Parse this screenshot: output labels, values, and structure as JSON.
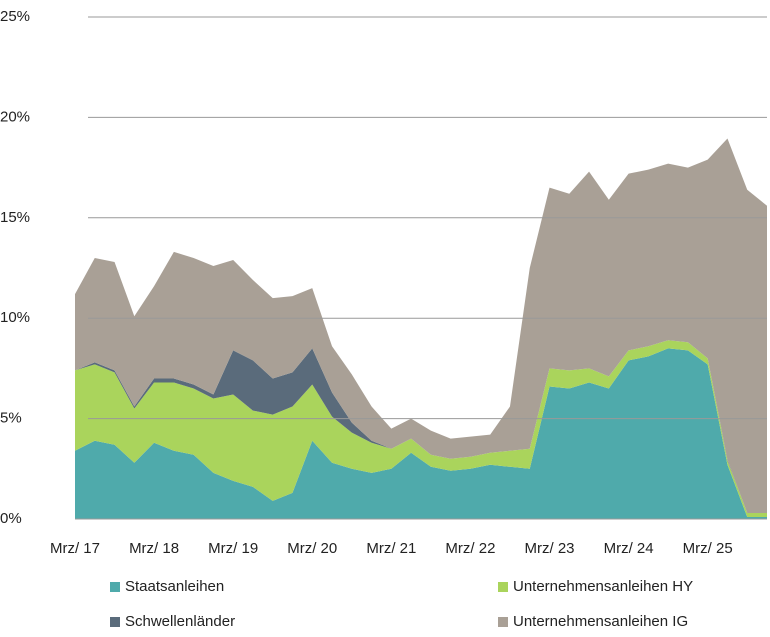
{
  "chart_data": {
    "type": "stacked_area",
    "categories": [
      "Mrz/ 17",
      null,
      null,
      null,
      "Mrz/ 18",
      null,
      null,
      null,
      "Mrz/ 19",
      null,
      null,
      null,
      "Mrz/ 20",
      null,
      null,
      null,
      "Mrz/ 21",
      null,
      null,
      null,
      "Mrz/ 22",
      null,
      null,
      null,
      "Mrz/ 23",
      null,
      null,
      null,
      "Mrz/ 24",
      null,
      null,
      null,
      "Mrz/ 25",
      null,
      null,
      null
    ],
    "series": [
      {
        "name": "Staatsanleihen",
        "color": "#4faaab",
        "values": [
          3.4,
          3.9,
          3.7,
          2.8,
          3.8,
          3.4,
          3.2,
          2.3,
          1.9,
          1.6,
          0.9,
          1.3,
          3.9,
          2.8,
          2.5,
          2.3,
          2.5,
          3.3,
          2.6,
          2.4,
          2.5,
          2.7,
          2.6,
          2.5,
          6.6,
          6.5,
          6.8,
          6.5,
          7.9,
          8.1,
          8.5,
          8.4,
          7.7,
          2.7,
          0.1,
          0.1
        ]
      },
      {
        "name": "Unternehmensanleihen HY",
        "color": "#aad45c",
        "values": [
          4.0,
          3.8,
          3.6,
          2.7,
          3.0,
          3.4,
          3.3,
          3.7,
          4.3,
          3.8,
          4.3,
          4.3,
          2.8,
          2.3,
          1.8,
          1.5,
          1.0,
          0.7,
          0.6,
          0.6,
          0.6,
          0.6,
          0.8,
          1.0,
          0.9,
          0.9,
          0.7,
          0.6,
          0.5,
          0.5,
          0.4,
          0.4,
          0.3,
          0.2,
          0.2,
          0.2
        ]
      },
      {
        "name": "Schwellenländer",
        "color": "#5a6b7b",
        "values": [
          0,
          0.1,
          0.1,
          0.1,
          0.2,
          0.2,
          0.2,
          0.2,
          2.2,
          2.5,
          1.8,
          1.7,
          1.8,
          1.2,
          0.5,
          0.1,
          0,
          0,
          0,
          0,
          0,
          0,
          0,
          0,
          0,
          0,
          0,
          0,
          0,
          0,
          0,
          0,
          0,
          0.05,
          0,
          0
        ]
      },
      {
        "name": "Unternehmensanleihen IG",
        "color": "#a9a096",
        "values": [
          3.8,
          5.2,
          5.4,
          4.5,
          4.6,
          6.3,
          6.3,
          6.4,
          4.5,
          4.0,
          4.0,
          3.8,
          3.0,
          2.3,
          2.4,
          1.7,
          1.0,
          1.0,
          1.2,
          1.0,
          1.0,
          0.9,
          2.2,
          9.0,
          9.0,
          8.8,
          9.8,
          8.8,
          8.8,
          8.8,
          8.8,
          8.7,
          9.9,
          16.0,
          16.1,
          15.3
        ]
      }
    ],
    "ylim": [
      0,
      25
    ],
    "yticks": [
      {
        "value": 0,
        "label": "0%"
      },
      {
        "value": 5,
        "label": "5%"
      },
      {
        "value": 10,
        "label": "10%"
      },
      {
        "value": 15,
        "label": "15%"
      },
      {
        "value": 20,
        "label": "20%"
      },
      {
        "value": 25,
        "label": "25%"
      }
    ],
    "grid": true
  }
}
